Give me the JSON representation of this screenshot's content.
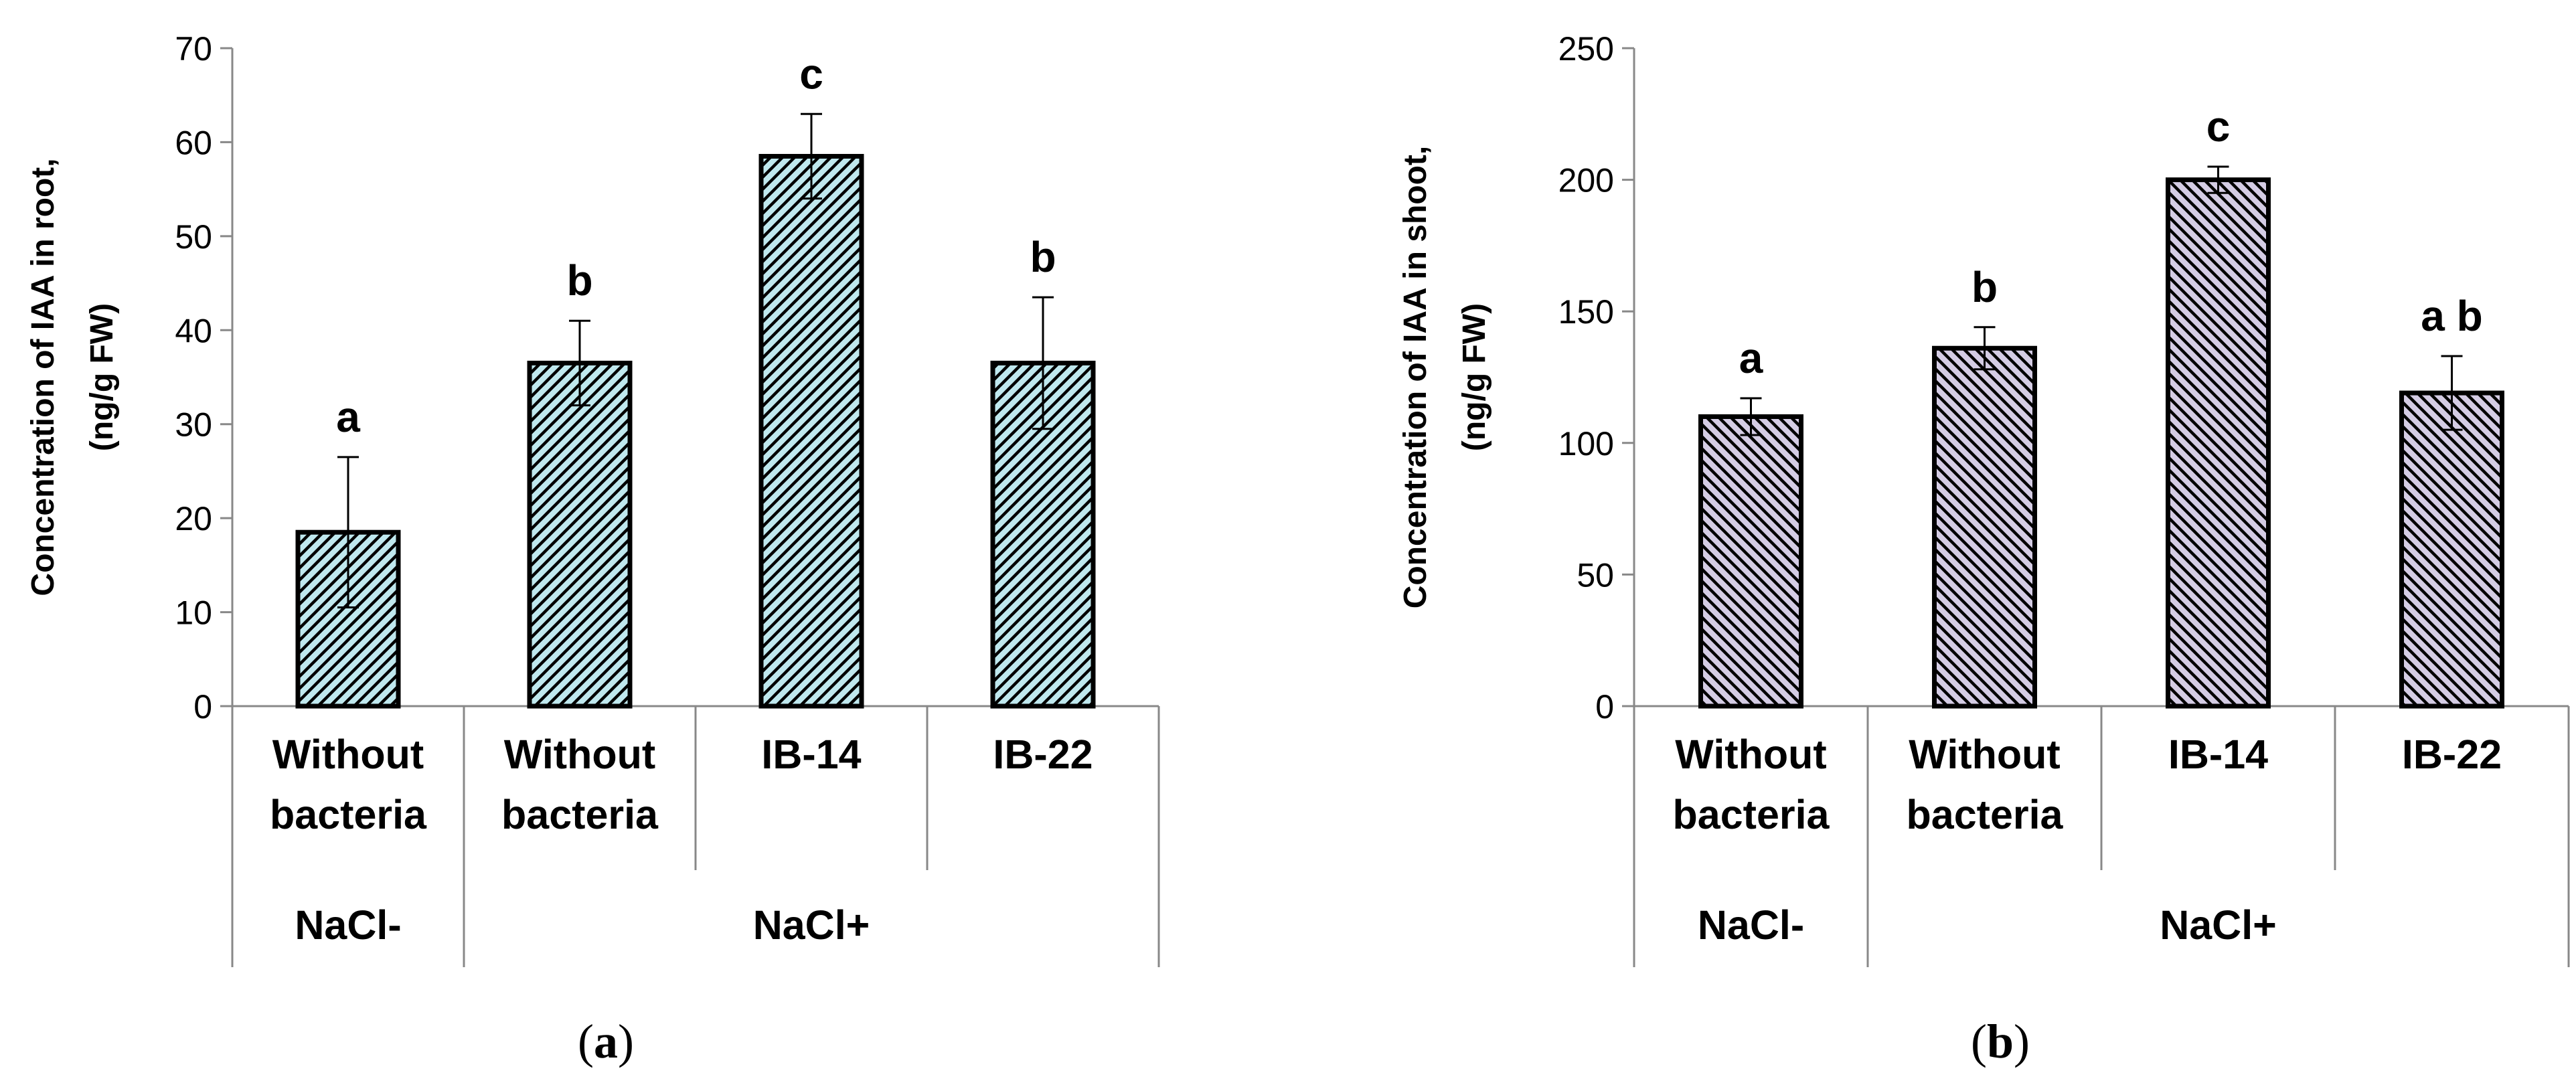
{
  "chart_data": [
    {
      "type": "bar",
      "panel_label": "(a)",
      "ylabel": [
        "Concentration of IAA in root,",
        "(ng/g FW)"
      ],
      "ylim": [
        0,
        70
      ],
      "yticks": [
        0,
        10,
        20,
        30,
        40,
        50,
        60,
        70
      ],
      "categories": [
        [
          "Without",
          "bacteria"
        ],
        [
          "Without",
          "bacteria"
        ],
        [
          "IB-14"
        ],
        [
          "IB-22"
        ]
      ],
      "groups": [
        {
          "label": "NaCl-",
          "span": 1
        },
        {
          "label": "NaCl+",
          "span": 3
        }
      ],
      "values": [
        18.5,
        36.5,
        58.5,
        36.5
      ],
      "errors": [
        8,
        4.5,
        4.5,
        7
      ],
      "significance": [
        "a",
        "b",
        "c",
        "b"
      ],
      "bar_fill": "#bfe8ee",
      "hatch_direction": "backslash"
    },
    {
      "type": "bar",
      "panel_label": "(b)",
      "ylabel": [
        "Concentration of IAA in shoot,",
        "(ng/g FW)"
      ],
      "ylim": [
        0,
        250
      ],
      "yticks": [
        0,
        50,
        100,
        150,
        200,
        250
      ],
      "categories": [
        [
          "Without",
          "bacteria"
        ],
        [
          "Without",
          "bacteria"
        ],
        [
          "IB-14"
        ],
        [
          "IB-22"
        ]
      ],
      "groups": [
        {
          "label": "NaCl-",
          "span": 1
        },
        {
          "label": "NaCl+",
          "span": 3
        }
      ],
      "values": [
        110,
        136,
        200,
        119
      ],
      "errors": [
        7,
        8,
        5,
        14
      ],
      "significance": [
        "a",
        "b",
        "c",
        "a b"
      ],
      "bar_fill": "#d4cce4",
      "hatch_direction": "slash"
    }
  ]
}
